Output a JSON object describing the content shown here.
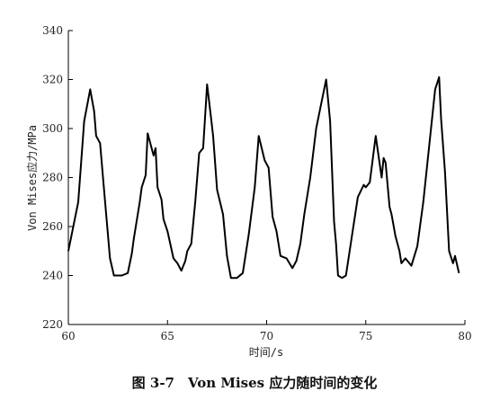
{
  "chart_data": {
    "type": "line",
    "title": "图 3-7　Von Mises 应力随时间的变化",
    "xlabel": "时间/s",
    "ylabel": "Von Mises应力/MPa",
    "xlim": [
      60,
      80
    ],
    "ylim": [
      220,
      340
    ],
    "xticks": [
      "60",
      "65",
      "70",
      "75",
      "80"
    ],
    "yticks": [
      "220",
      "240",
      "260",
      "280",
      "300",
      "320",
      "340"
    ],
    "grid": false,
    "legend": "none",
    "line_color": "#000000",
    "series": [
      {
        "x": [
          60.0,
          60.5,
          60.8,
          61.1,
          61.3,
          61.4,
          61.6,
          61.8,
          62.1,
          62.3,
          62.7,
          63.0,
          63.2,
          63.3,
          63.5,
          63.6,
          63.7,
          63.9,
          64.0,
          64.3,
          64.4,
          64.5,
          64.7,
          64.8,
          65.0,
          65.3,
          65.5,
          65.7,
          65.9,
          66.0,
          66.2,
          66.4,
          66.6,
          66.8,
          67.0,
          67.2,
          67.3,
          67.5,
          67.8,
          68.0,
          68.2,
          68.5,
          68.8,
          69.1,
          69.4,
          69.6,
          69.9,
          70.1,
          70.3,
          70.5,
          70.7,
          71.0,
          71.3,
          71.5,
          71.7,
          71.9,
          72.2,
          72.5,
          72.7,
          73.0,
          73.2,
          73.4,
          73.5,
          73.6,
          73.8,
          74.0,
          74.3,
          74.6,
          74.9,
          75.0,
          75.2,
          75.5,
          75.8,
          75.9,
          76.0,
          76.2,
          76.3,
          76.5,
          76.7,
          76.8,
          77.0,
          77.3,
          77.6,
          77.9,
          78.2,
          78.5,
          78.7,
          78.8,
          79.0,
          79.2,
          79.4,
          79.5,
          79.7
        ],
        "y": [
          250,
          270,
          303,
          316,
          307,
          297,
          294,
          275,
          247,
          240,
          240,
          241,
          249,
          255,
          265,
          270,
          276,
          281,
          298,
          289,
          292,
          276,
          271,
          263,
          258,
          247,
          245,
          242,
          246,
          250,
          253,
          270,
          290,
          292,
          318,
          304,
          297,
          275,
          265,
          248,
          239,
          239,
          241,
          257,
          276,
          297,
          287,
          284,
          264,
          258,
          248,
          247,
          243,
          246,
          253,
          265,
          280,
          300,
          308,
          320,
          303,
          262,
          253,
          240,
          239,
          240,
          256,
          272,
          277,
          276,
          278,
          297,
          280,
          288,
          286,
          268,
          265,
          256,
          250,
          245,
          247,
          244,
          252,
          270,
          293,
          316,
          321,
          304,
          282,
          250,
          245,
          248,
          241
        ]
      }
    ]
  }
}
